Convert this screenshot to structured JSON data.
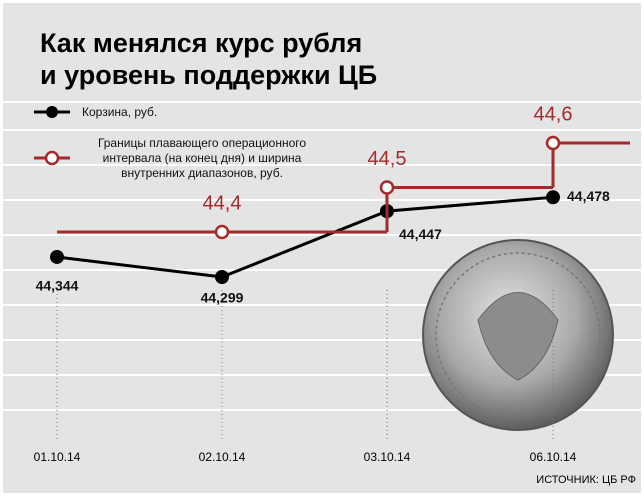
{
  "chart_data": {
    "type": "line",
    "title": [
      "Как менялся курс рубля",
      "и уровень поддержки ЦБ"
    ],
    "categories": [
      "01.10.14",
      "02.10.14",
      "03.10.14",
      "06.10.14"
    ],
    "series": [
      {
        "name": "Корзина, руб.",
        "color": "#000000",
        "values": [
          44.344,
          44.299,
          44.447,
          44.478
        ],
        "value_labels": [
          "44,344",
          "44,299",
          "44,447",
          "44,478"
        ]
      },
      {
        "name": "Границы плавающего операционного интервала (на конец дня) и ширина внутренних диапазонов, руб.",
        "color": "#a52a2a",
        "values": [
          null,
          44.4,
          44.5,
          44.6
        ],
        "value_labels": [
          null,
          "44,4",
          "44,5",
          "44,6"
        ],
        "step": true
      }
    ],
    "source": "ИСТОЧНИК: ЦБ РФ"
  }
}
